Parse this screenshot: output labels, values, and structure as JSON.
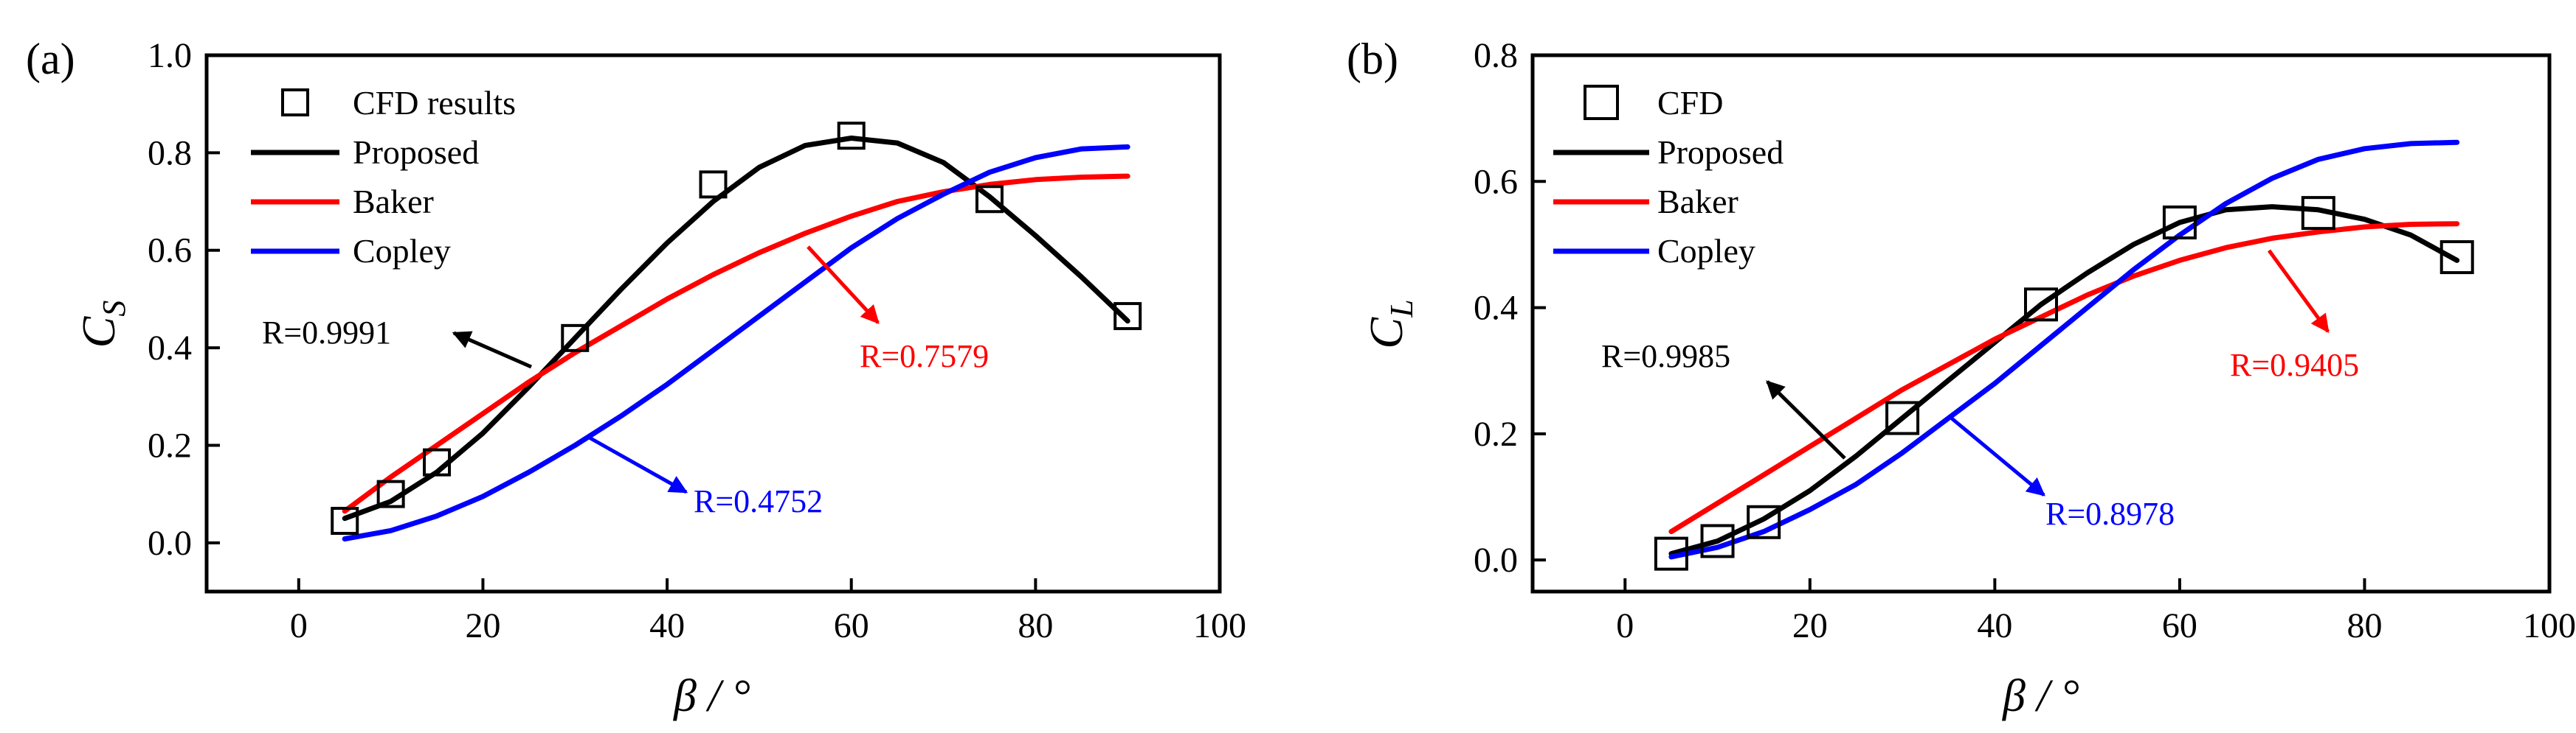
{
  "figure": {
    "panel_labels": [
      "(a)",
      "(b)"
    ]
  },
  "chart_data": [
    {
      "type": "line",
      "panel": "(a)",
      "title": "",
      "xlabel": "β / °",
      "ylabel": "C",
      "ylabel_sub": "S",
      "xlim": [
        -10,
        100
      ],
      "ylim": [
        -0.1,
        1.0
      ],
      "xticks": [
        0,
        20,
        40,
        60,
        80,
        100
      ],
      "yticks": [
        0.0,
        0.2,
        0.4,
        0.6,
        0.8,
        1.0
      ],
      "xtick_labels": [
        "0",
        "20",
        "40",
        "60",
        "80",
        "100"
      ],
      "ytick_labels": [
        "0.0",
        "0.2",
        "0.4",
        "0.6",
        "0.8",
        "1.0"
      ],
      "legend": {
        "position": "top-left",
        "entries": [
          "CFD results",
          "Proposed",
          "Baker",
          "Copley"
        ]
      },
      "scatter": {
        "name": "CFD results",
        "x": [
          5,
          10,
          15,
          30,
          45,
          60,
          75,
          90
        ],
        "y": [
          0.045,
          0.1,
          0.165,
          0.42,
          0.735,
          0.835,
          0.705,
          0.465
        ]
      },
      "series": [
        {
          "name": "Proposed",
          "color": "#000000",
          "x": [
            5,
            10,
            15,
            20,
            25,
            30,
            35,
            40,
            45,
            50,
            55,
            60,
            65,
            70,
            75,
            80,
            85,
            90
          ],
          "y": [
            0.05,
            0.085,
            0.145,
            0.225,
            0.32,
            0.42,
            0.52,
            0.615,
            0.7,
            0.77,
            0.815,
            0.83,
            0.82,
            0.78,
            0.71,
            0.63,
            0.545,
            0.455
          ]
        },
        {
          "name": "Baker",
          "color": "#ff0000",
          "x": [
            5,
            10,
            15,
            20,
            25,
            30,
            35,
            40,
            45,
            50,
            55,
            60,
            65,
            70,
            75,
            80,
            85,
            90
          ],
          "y": [
            0.065,
            0.135,
            0.2,
            0.265,
            0.33,
            0.39,
            0.445,
            0.5,
            0.55,
            0.595,
            0.635,
            0.67,
            0.7,
            0.72,
            0.735,
            0.745,
            0.75,
            0.752
          ]
        },
        {
          "name": "Copley",
          "color": "#0000ff",
          "x": [
            5,
            10,
            15,
            20,
            25,
            30,
            35,
            40,
            45,
            50,
            55,
            60,
            65,
            70,
            75,
            80,
            85,
            90
          ],
          "y": [
            0.008,
            0.025,
            0.055,
            0.095,
            0.145,
            0.2,
            0.26,
            0.325,
            0.395,
            0.465,
            0.535,
            0.605,
            0.665,
            0.715,
            0.76,
            0.79,
            0.808,
            0.812
          ]
        }
      ],
      "annotations": [
        {
          "text": "R=0.9991",
          "color": "#000000"
        },
        {
          "text": "R=0.7579",
          "color": "#ff0000"
        },
        {
          "text": "R=0.4752",
          "color": "#0000ff"
        }
      ]
    },
    {
      "type": "line",
      "panel": "(b)",
      "title": "",
      "xlabel": "β / °",
      "ylabel": "C",
      "ylabel_sub": "L",
      "xlim": [
        -10,
        100
      ],
      "ylim": [
        -0.05,
        0.8
      ],
      "xticks": [
        0,
        20,
        40,
        60,
        80,
        100
      ],
      "yticks": [
        0.0,
        0.2,
        0.4,
        0.6,
        0.8
      ],
      "xtick_labels": [
        "0",
        "20",
        "40",
        "60",
        "80",
        "100"
      ],
      "ytick_labels": [
        "0.0",
        "0.2",
        "0.4",
        "0.6",
        "0.8"
      ],
      "legend": {
        "position": "top-left",
        "entries": [
          "CFD",
          "Proposed",
          "Baker",
          "Copley"
        ]
      },
      "scatter": {
        "name": "CFD",
        "x": [
          5,
          10,
          15,
          30,
          45,
          60,
          75,
          90
        ],
        "y": [
          0.01,
          0.03,
          0.06,
          0.225,
          0.405,
          0.535,
          0.55,
          0.48
        ]
      },
      "series": [
        {
          "name": "Proposed",
          "color": "#000000",
          "x": [
            5,
            10,
            15,
            20,
            25,
            30,
            35,
            40,
            45,
            50,
            55,
            60,
            65,
            70,
            75,
            80,
            85,
            90
          ],
          "y": [
            0.01,
            0.03,
            0.065,
            0.11,
            0.165,
            0.225,
            0.285,
            0.345,
            0.405,
            0.455,
            0.5,
            0.535,
            0.555,
            0.56,
            0.555,
            0.54,
            0.515,
            0.475
          ]
        },
        {
          "name": "Baker",
          "color": "#ff0000",
          "x": [
            5,
            10,
            15,
            20,
            25,
            30,
            35,
            40,
            45,
            50,
            55,
            60,
            65,
            70,
            75,
            80,
            85,
            90
          ],
          "y": [
            0.045,
            0.09,
            0.135,
            0.18,
            0.225,
            0.27,
            0.31,
            0.35,
            0.385,
            0.42,
            0.45,
            0.475,
            0.495,
            0.51,
            0.52,
            0.528,
            0.532,
            0.533
          ]
        },
        {
          "name": "Copley",
          "color": "#0000ff",
          "x": [
            5,
            10,
            15,
            20,
            25,
            30,
            35,
            40,
            45,
            50,
            55,
            60,
            65,
            70,
            75,
            80,
            85,
            90
          ],
          "y": [
            0.005,
            0.02,
            0.045,
            0.08,
            0.12,
            0.17,
            0.225,
            0.28,
            0.34,
            0.4,
            0.46,
            0.515,
            0.565,
            0.605,
            0.635,
            0.652,
            0.66,
            0.662
          ]
        }
      ],
      "annotations": [
        {
          "text": "R=0.9985",
          "color": "#000000"
        },
        {
          "text": "R=0.9405",
          "color": "#ff0000"
        },
        {
          "text": "R=0.8978",
          "color": "#0000ff"
        }
      ]
    }
  ]
}
